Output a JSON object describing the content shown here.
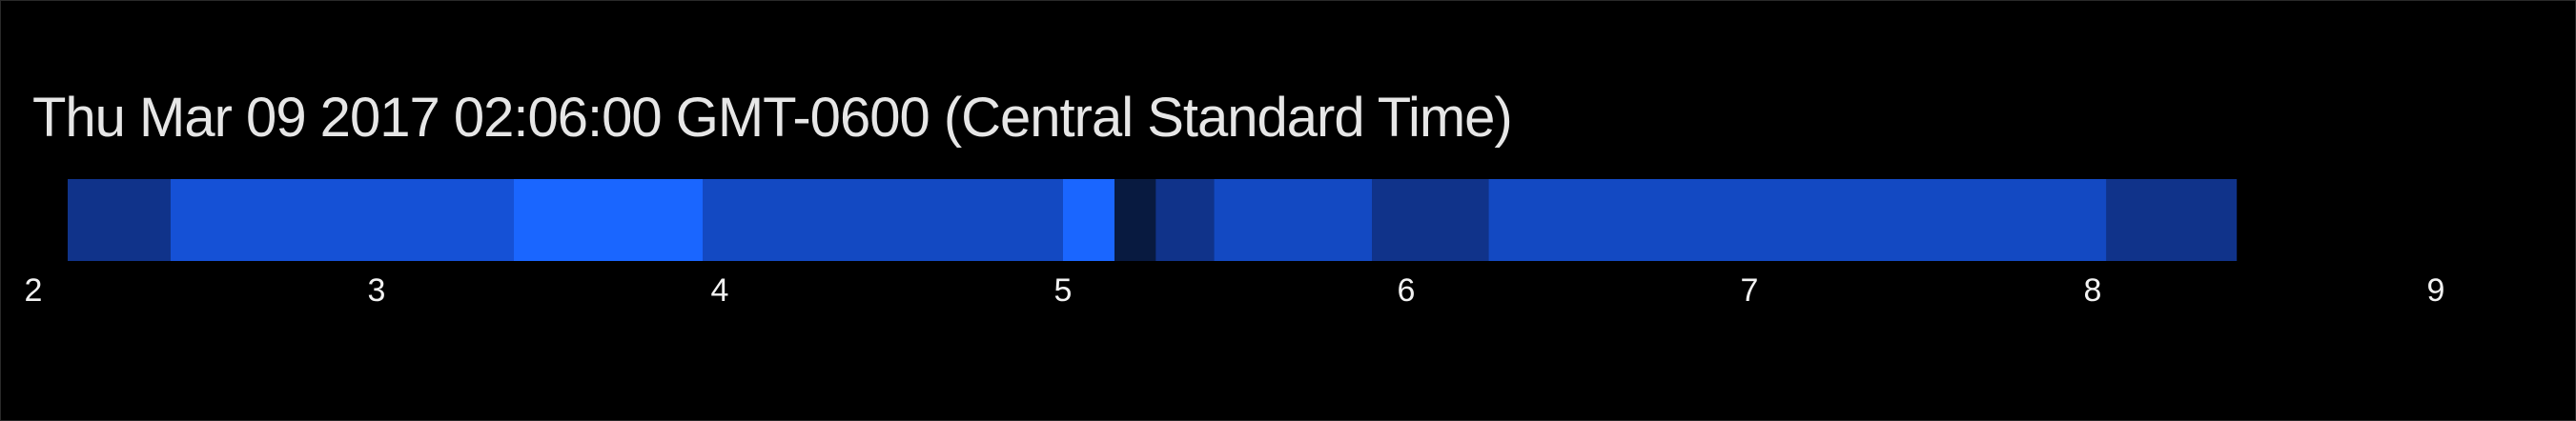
{
  "chart_data": {
    "type": "bar",
    "orientation": "horizontal-timeline",
    "title": "Thu Mar 09 2017 02:06:00 GMT-0600 (Central Standard Time)",
    "xlim": [
      2,
      9
    ],
    "xticks": [
      "2",
      "3",
      "4",
      "5",
      "6",
      "7",
      "8",
      "9"
    ],
    "grid": false,
    "segments": [
      {
        "start": 2.1,
        "end": 2.4,
        "color": "#10338a"
      },
      {
        "start": 2.4,
        "end": 3.4,
        "color": "#1551d6"
      },
      {
        "start": 3.4,
        "end": 3.95,
        "color": "#1a66ff"
      },
      {
        "start": 3.95,
        "end": 5.0,
        "color": "#1349c2"
      },
      {
        "start": 5.0,
        "end": 5.15,
        "color": "#1a66ff"
      },
      {
        "start": 5.15,
        "end": 5.27,
        "color": "#081a40"
      },
      {
        "start": 5.27,
        "end": 5.44,
        "color": "#10338a"
      },
      {
        "start": 5.44,
        "end": 5.9,
        "color": "#1349c2"
      },
      {
        "start": 5.9,
        "end": 6.24,
        "color": "#10338a"
      },
      {
        "start": 6.24,
        "end": 8.04,
        "color": "#1349c2"
      },
      {
        "start": 8.04,
        "end": 8.42,
        "color": "#10338a"
      }
    ]
  }
}
